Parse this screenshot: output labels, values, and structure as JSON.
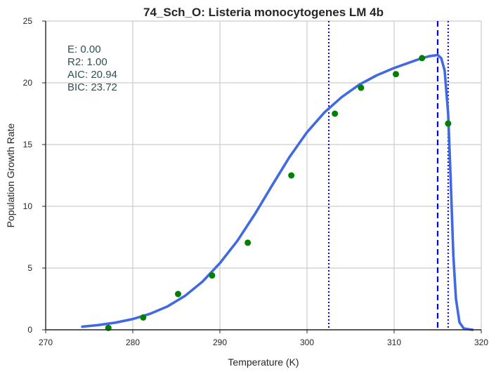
{
  "chart_data": {
    "type": "scatter",
    "title": "74_Sch_O: Listeria monocytogenes LM 4b",
    "xlabel": "Temperature (K)",
    "ylabel": "Population Growth Rate",
    "xlim": [
      270,
      320
    ],
    "ylim": [
      0,
      25
    ],
    "x_ticks": [
      "270",
      "280",
      "290",
      "300",
      "310",
      "320"
    ],
    "y_ticks": [
      "0",
      "5",
      "10",
      "15",
      "20",
      "25"
    ],
    "grid": true,
    "stats": [
      {
        "label": "E:",
        "value": "0.00"
      },
      {
        "label": "R2:",
        "value": "1.00"
      },
      {
        "label": "AIC:",
        "value": "20.94"
      },
      {
        "label": "BIC:",
        "value": "23.72"
      }
    ],
    "series": [
      {
        "kind": "points",
        "color": "#008000",
        "x": [
          277.2,
          281.2,
          285.2,
          289.1,
          293.2,
          298.2,
          303.2,
          306.2,
          310.2,
          313.2,
          316.2
        ],
        "y": [
          0.15,
          1.0,
          2.9,
          4.4,
          7.05,
          12.5,
          17.5,
          19.6,
          20.7,
          22.0,
          16.7
        ]
      },
      {
        "kind": "fitted-curve",
        "color": "#4169e1",
        "x": [
          274.2,
          276,
          278,
          280,
          282,
          284,
          286,
          288,
          290,
          292,
          294,
          296,
          298,
          300,
          302,
          304,
          306,
          308,
          310,
          312,
          313,
          314,
          314.5,
          315,
          315.4,
          315.8,
          316.2,
          316.5,
          316.8,
          317.1,
          317.5,
          318,
          319
        ],
        "y": [
          0.25,
          0.38,
          0.58,
          0.87,
          1.3,
          1.9,
          2.75,
          3.9,
          5.4,
          7.2,
          9.35,
          11.7,
          14.0,
          16.0,
          17.6,
          18.85,
          19.85,
          20.6,
          21.2,
          21.7,
          21.95,
          22.15,
          22.2,
          22.25,
          22.0,
          21.0,
          17.5,
          12.0,
          6.0,
          2.5,
          0.6,
          0.1,
          0.0
        ]
      }
    ],
    "vlines": [
      {
        "x": 302.5,
        "style": "dotted",
        "color": "#0000ff"
      },
      {
        "x": 315.0,
        "style": "dashed",
        "color": "#0000ff"
      },
      {
        "x": 316.2,
        "style": "dotted",
        "color": "#0000ff"
      }
    ]
  }
}
